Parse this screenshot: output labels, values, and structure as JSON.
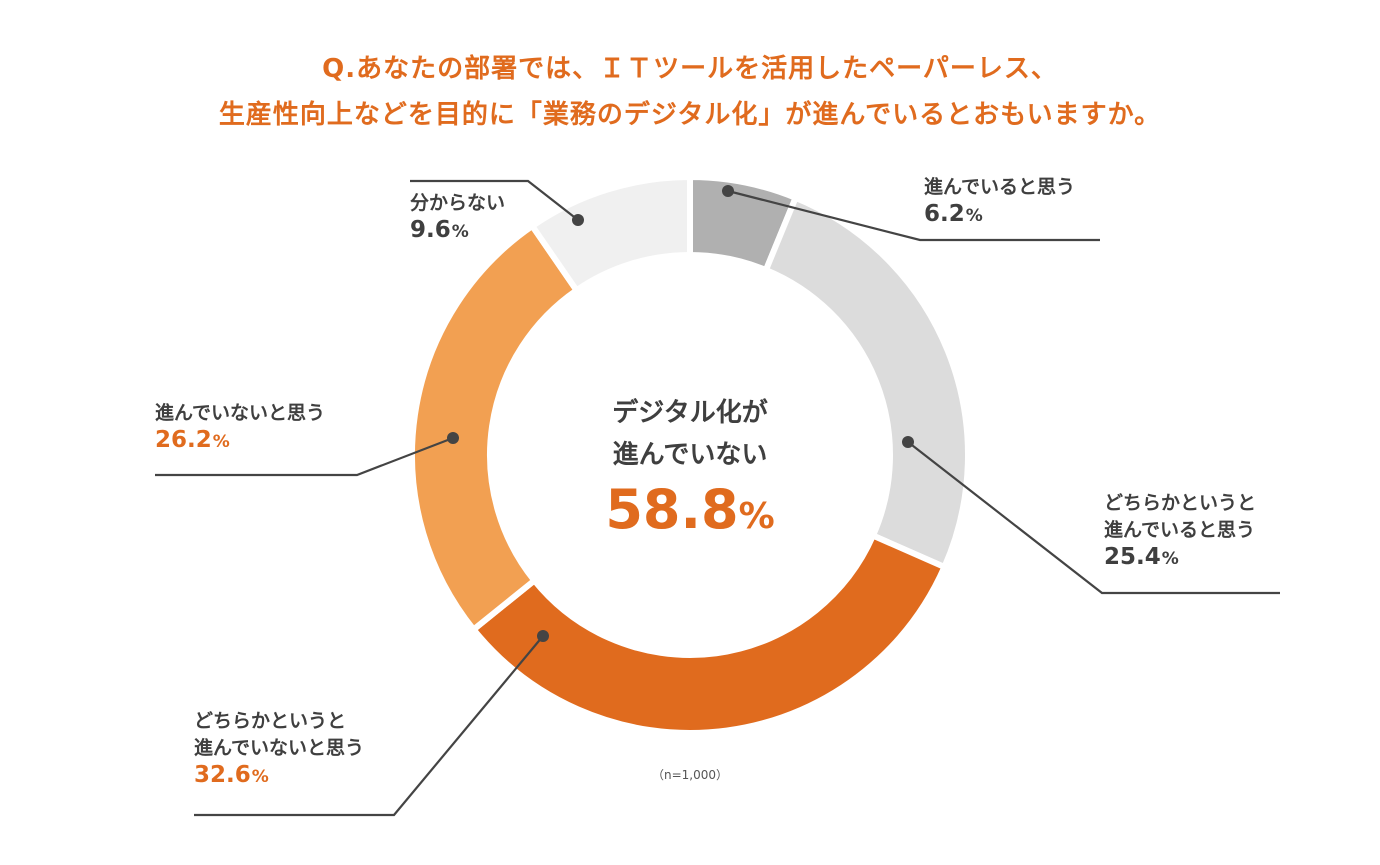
{
  "title": {
    "line1": "Q.あなたの部署では、ＩＴツールを活用したペーパーレス、",
    "line2": "生産性向上などを目的に「業務のデジタル化」が進んでいるとおもいますか。"
  },
  "center": {
    "line1": "デジタル化が",
    "line2": "進んでいない",
    "value": "58.8",
    "unit": "%"
  },
  "note": "（n=1,000）",
  "colors": {
    "accent": "#E06B1E",
    "text": "#3f3f3f",
    "leader": "#444444"
  },
  "chart_data": {
    "type": "pie",
    "donut": true,
    "start_angle_deg": 0,
    "direction": "clockwise",
    "unit": "%",
    "n": 1000,
    "slices": [
      {
        "label_lines": [
          "進んでいると思う"
        ],
        "value": 6.2,
        "value_text": "6.2",
        "color": "#B0B0B0",
        "accent_label": false
      },
      {
        "label_lines": [
          "どちらかというと",
          "進んでいると思う"
        ],
        "value": 25.4,
        "value_text": "25.4",
        "color": "#DCDCDC",
        "accent_label": false
      },
      {
        "label_lines": [
          "どちらかというと",
          "進んでいないと思う"
        ],
        "value": 32.6,
        "value_text": "32.6",
        "color": "#E06B1E",
        "accent_label": true
      },
      {
        "label_lines": [
          "進んでいないと思う"
        ],
        "value": 26.2,
        "value_text": "26.2",
        "color": "#F2A052",
        "accent_label": true
      },
      {
        "label_lines": [
          "分からない"
        ],
        "value": 9.6,
        "value_text": "9.6",
        "color": "#F0F0F0",
        "accent_label": false
      }
    ]
  }
}
